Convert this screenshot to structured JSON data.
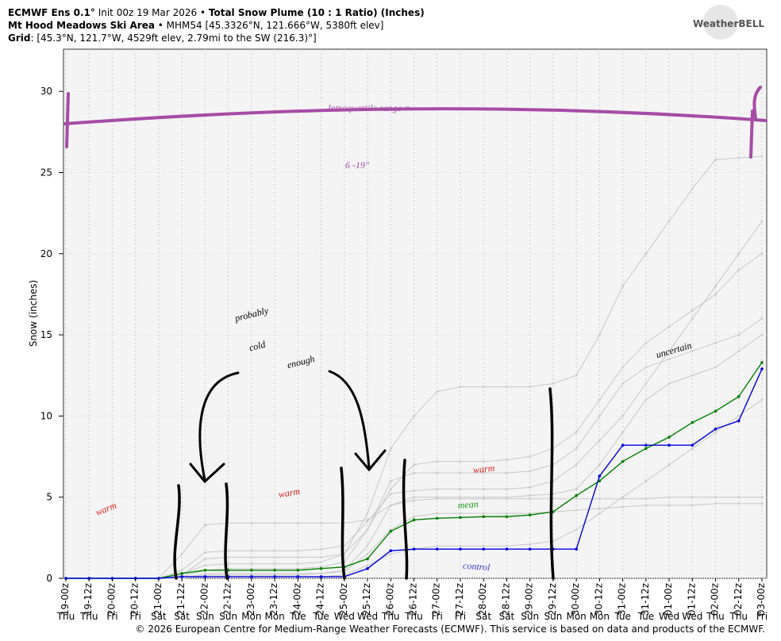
{
  "chart_data": {
    "type": "line",
    "title": "ECMWF Ens 0.1°",
    "init": "Init 00z 19 Mar 2026 •",
    "title_main": "Total Snow Plume (10 : 1 Ratio) (Inches)",
    "location": "Mt Hood Meadows Ski Area",
    "location_detail": "• MHM54 [45.3326°N, 121.666°W, 5380ft elev]",
    "grid_label": "Grid",
    "grid_detail": ": [45.3°N, 121.7°W, 4529ft elev, 2.79mi to the SW (216.3)°]",
    "logo": "WeatherBELL",
    "y_label": "Snow (inches)",
    "footer": "© 2026 European Centre for Medium-Range Weather Forecasts (ECMWF). This service is based on data and products of the ECMWF.",
    "categories": [
      "19-00z",
      "19-12z",
      "20-00z",
      "20-12z",
      "21-00z",
      "21-12z",
      "22-00z",
      "22-12z",
      "23-00z",
      "23-12z",
      "24-00z",
      "24-12z",
      "25-00z",
      "25-12z",
      "26-00z",
      "26-12z",
      "27-00z",
      "27-12z",
      "28-00z",
      "28-12z",
      "29-00z",
      "29-12z",
      "30-00z",
      "30-12z",
      "31-00z",
      "31-12z",
      "01-00z",
      "01-12z",
      "02-00z",
      "02-12z",
      "03-00z"
    ],
    "day_labels": [
      "Thu",
      "Thu",
      "Fri",
      "Fri",
      "Sat",
      "Sat",
      "Sun",
      "Sun",
      "Mon",
      "Mon",
      "Tue",
      "Tue",
      "Wed",
      "Wed",
      "Thu",
      "Thu",
      "Fri",
      "Fri",
      "Sat",
      "Sat",
      "Sun",
      "Sun",
      "Mon",
      "Mon",
      "Tue",
      "Tue",
      "Wed",
      "Wed",
      "Thu",
      "Thu",
      "Fri"
    ],
    "ylim": [
      0,
      32.6
    ],
    "yticks": [
      0,
      5,
      10,
      15,
      20,
      25,
      30
    ],
    "grid": true,
    "series": [
      {
        "color": "#c8c8c8",
        "values": [
          0,
          0,
          0,
          0,
          0,
          1.5,
          3.3,
          3.4,
          3.4,
          3.4,
          3.4,
          3.4,
          3.4,
          3.6,
          4.5,
          5,
          5,
          5,
          5,
          5,
          5.1,
          5.2,
          5.5,
          7,
          9,
          11,
          12,
          12.5,
          13,
          14,
          15
        ]
      },
      {
        "color": "#c8c8c8",
        "values": [
          0,
          0,
          0,
          0,
          0,
          0.5,
          1.6,
          1.7,
          1.7,
          1.7,
          1.7,
          1.8,
          2,
          3.5,
          5.2,
          5.4,
          5.5,
          5.5,
          5.5,
          5.5,
          5.6,
          6,
          7,
          8.5,
          10,
          12,
          14,
          16,
          18,
          20,
          22
        ]
      },
      {
        "color": "#c8c8c8",
        "values": [
          0,
          0,
          0,
          0,
          0,
          0.3,
          0.8,
          0.9,
          0.9,
          0.9,
          0.9,
          1,
          1.5,
          4,
          8,
          10,
          11.5,
          11.8,
          11.8,
          11.8,
          11.8,
          12,
          12.5,
          15,
          18,
          20,
          22,
          24,
          25.8,
          25.9,
          26
        ]
      },
      {
        "color": "#c8c8c8",
        "values": [
          0,
          0,
          0,
          0,
          0,
          0,
          0.2,
          0.2,
          0.2,
          0.2,
          0.2,
          0.3,
          0.5,
          2,
          4.5,
          4.8,
          4.9,
          4.9,
          4.9,
          4.9,
          4.9,
          4.9,
          4.9,
          4.9,
          4.9,
          4.9,
          5,
          5,
          5,
          5,
          5
        ]
      },
      {
        "color": "#c8c8c8",
        "values": [
          0,
          0,
          0,
          0,
          0,
          0.1,
          0.5,
          0.6,
          0.6,
          0.6,
          0.6,
          0.7,
          1,
          3,
          5.5,
          7,
          7.2,
          7.2,
          7.2,
          7.3,
          7.5,
          8,
          9,
          11,
          13,
          14.5,
          15.5,
          16.5,
          17.5,
          19,
          20
        ]
      },
      {
        "color": "#c8c8c8",
        "values": [
          0,
          0,
          0,
          0,
          0,
          0,
          0.1,
          0.1,
          0.1,
          0.1,
          0.1,
          0.1,
          0.2,
          0.8,
          1.5,
          1.8,
          2,
          2,
          2,
          2,
          2.1,
          2.3,
          3,
          4,
          5,
          6,
          7,
          8,
          9,
          10,
          11
        ]
      },
      {
        "color": "#c8c8c8",
        "values": [
          0,
          0,
          0,
          0,
          0,
          0.2,
          1.2,
          1.3,
          1.3,
          1.3,
          1.3,
          1.3,
          1.5,
          3,
          6,
          6.5,
          6.5,
          6.5,
          6.5,
          6.5,
          6.6,
          7,
          8,
          10,
          12,
          13,
          13.5,
          14,
          14.5,
          15,
          16
        ]
      },
      {
        "color": "#c8c8c8",
        "values": [
          0,
          0,
          0,
          0,
          0,
          0,
          0.3,
          0.3,
          0.3,
          0.3,
          0.3,
          0.3,
          0.4,
          1.5,
          3,
          3.8,
          4,
          4,
          4,
          4,
          4,
          4.1,
          4.2,
          4.3,
          4.4,
          4.5,
          4.5,
          4.5,
          4.6,
          4.6,
          4.6
        ]
      },
      {
        "color": "#008000",
        "values": [
          0,
          0,
          0,
          0,
          0,
          0.3,
          0.5,
          0.5,
          0.5,
          0.5,
          0.5,
          0.6,
          0.7,
          1.2,
          2.9,
          3.6,
          3.7,
          3.75,
          3.8,
          3.8,
          3.9,
          4.1,
          5.1,
          6,
          7.2,
          8,
          8.7,
          9.6,
          10.3,
          11.2,
          13.3
        ]
      },
      {
        "color": "#0000dd",
        "values": [
          0,
          0,
          0,
          0,
          0,
          0.1,
          0.1,
          0.1,
          0.1,
          0.1,
          0.1,
          0.1,
          0.1,
          0.6,
          1.7,
          1.8,
          1.8,
          1.8,
          1.8,
          1.8,
          1.8,
          1.8,
          1.8,
          6.3,
          8.2,
          8.2,
          8.2,
          8.2,
          9.2,
          9.7,
          12.9
        ]
      }
    ],
    "annotations": [
      {
        "text": "Intraquartile range =",
        "color": "#a64ca6"
      },
      {
        "text": "6 -19\"",
        "color": "#a64ca6"
      },
      {
        "text": "probably",
        "color": "#000000"
      },
      {
        "text": "cold",
        "color": "#000000"
      },
      {
        "text": "enough",
        "color": "#000000"
      },
      {
        "text": "warm",
        "color": "#e02020"
      },
      {
        "text": "warm",
        "color": "#e02020"
      },
      {
        "text": "warm",
        "color": "#e02020"
      },
      {
        "text": "mean",
        "color": "#1a9a1a"
      },
      {
        "text": "control",
        "color": "#3a3ad0"
      },
      {
        "text": "uncertain",
        "color": "#000000"
      }
    ]
  }
}
